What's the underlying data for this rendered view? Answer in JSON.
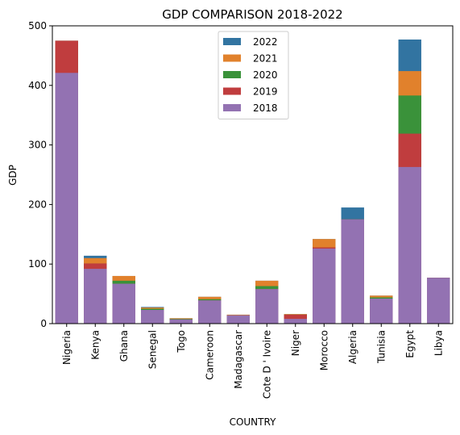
{
  "chart_data": {
    "type": "bar",
    "stacked": "overlay",
    "title": "GDP COMPARISON 2018-2022",
    "xlabel": "COUNTRY",
    "ylabel": "GDP",
    "ylim": [
      0,
      500
    ],
    "yticks": [
      "0",
      "100",
      "200",
      "300",
      "400",
      "500"
    ],
    "grid": false,
    "legend_position": "top-center",
    "categories": [
      "Nigeria",
      "Kenya",
      "Ghana",
      "Senegal",
      "Togo",
      "Cameroon",
      "Madagascar",
      "Cote D ' Ivoire",
      "Niger",
      "Morocco",
      "Algeria",
      "Tunisia",
      "Egypt",
      "Libya"
    ],
    "series": [
      {
        "name": "2022",
        "color": "#3274a1",
        "values": [
          475,
          114,
          80,
          28,
          9,
          45,
          15,
          72,
          16,
          142,
          195,
          47,
          477,
          77
        ]
      },
      {
        "name": "2021",
        "color": "#e1812c",
        "values": [
          475,
          110,
          80,
          27,
          9,
          45,
          15,
          72,
          16,
          142,
          175,
          47,
          424,
          77
        ]
      },
      {
        "name": "2020",
        "color": "#3a923a",
        "values": [
          475,
          101,
          72,
          25,
          8,
          41,
          14,
          63,
          15,
          128,
          175,
          44,
          383,
          77
        ]
      },
      {
        "name": "2019",
        "color": "#c03d3e",
        "values": [
          475,
          101,
          67,
          23,
          7,
          39,
          14,
          58,
          15,
          128,
          175,
          42,
          319,
          77
        ]
      },
      {
        "name": "2018",
        "color": "#9372b2",
        "values": [
          421,
          92,
          67,
          23,
          7,
          39,
          14,
          58,
          8,
          126,
          175,
          42,
          263,
          77
        ]
      }
    ]
  }
}
